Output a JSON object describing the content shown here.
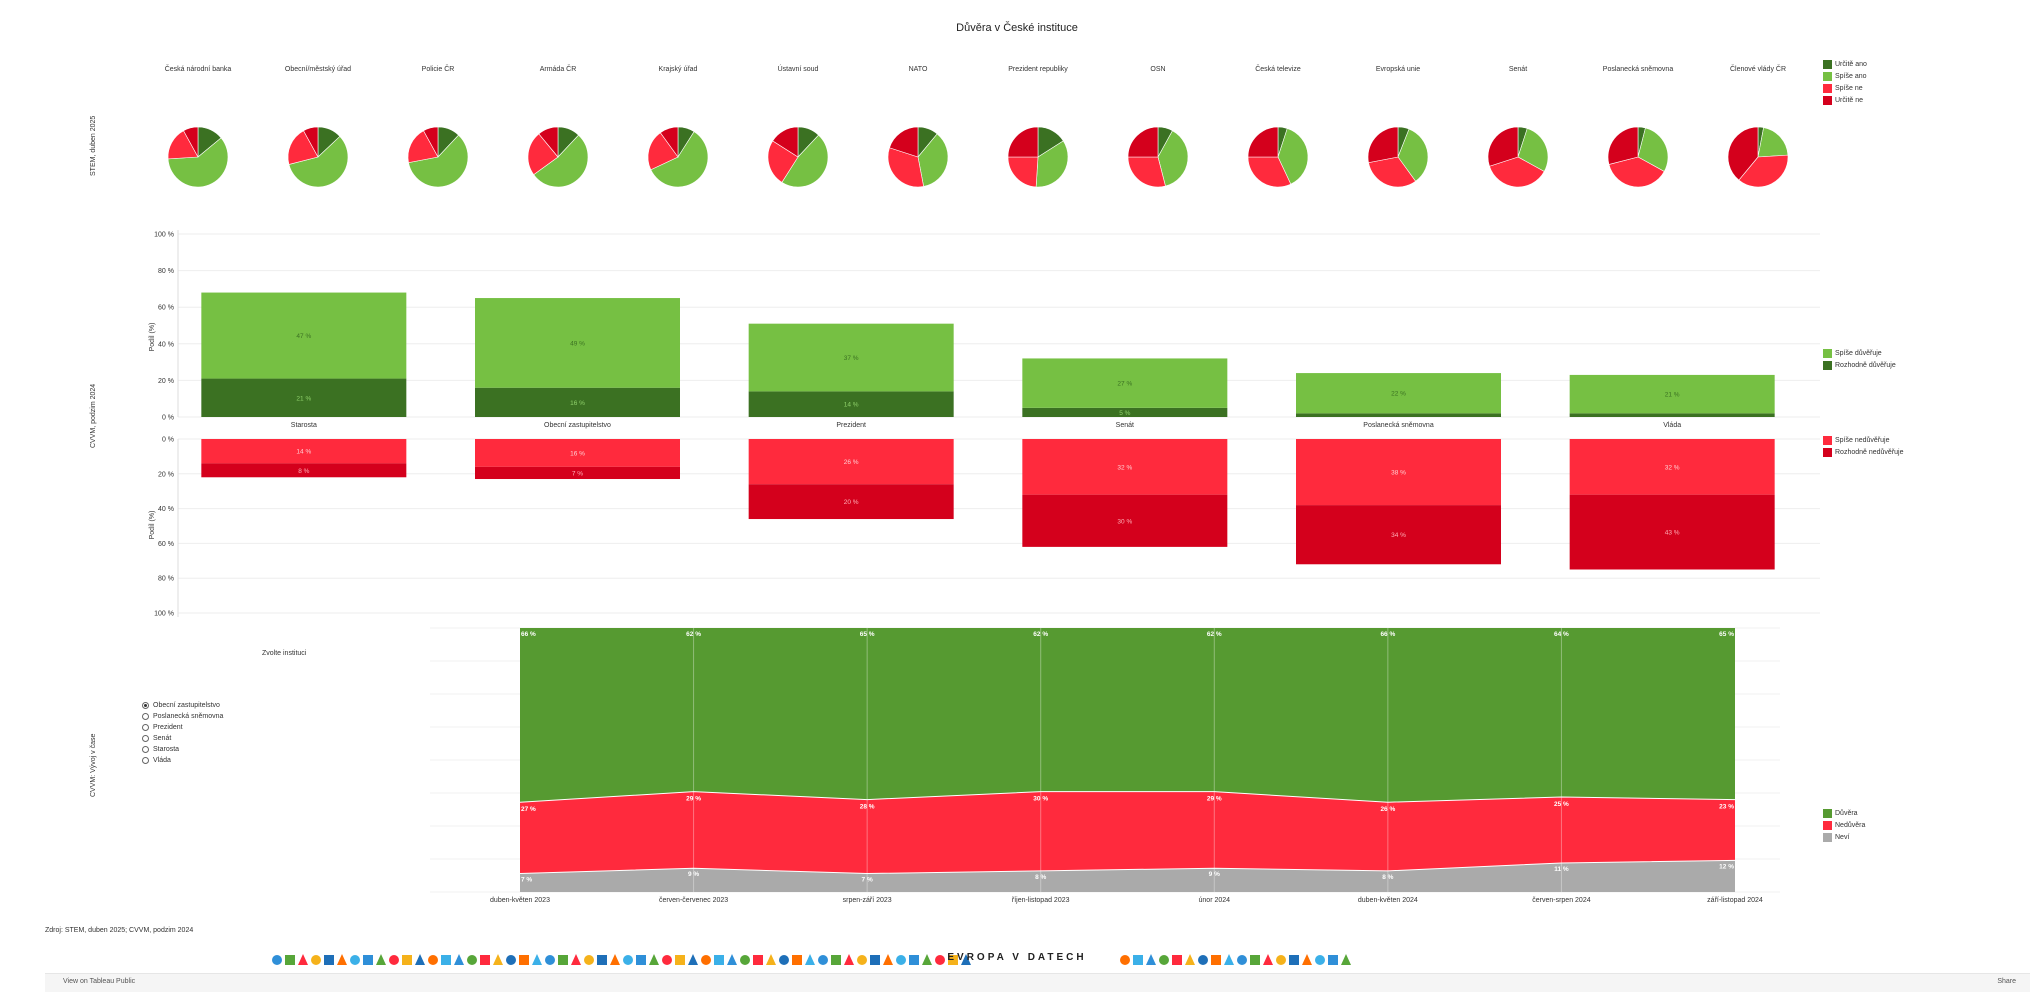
{
  "title": "Důvěra v České instituce",
  "colors": {
    "dark_green": "#3b7122",
    "light_green": "#76c043",
    "light_red": "#ff2a3d",
    "dark_red": "#d4001c",
    "trend_green": "#569a31",
    "trend_red": "#ff2a3d",
    "trend_gray": "#aaaaaa"
  },
  "row_labels": {
    "pies": "STEM, duben 2025",
    "bars": "CVVM, podzim 2024",
    "trend": "CVVM: Vývoj v čase"
  },
  "pie_legend": [
    "Určitě ano",
    "Spíše ano",
    "Spíše ne",
    "Určitě ne"
  ],
  "bar_legend_top": [
    "Spíše důvěřuje",
    "Rozhodně důvěřuje"
  ],
  "bar_legend_bottom": [
    "Spíše nedůvěřuje",
    "Rozhodně nedůvěřuje"
  ],
  "trend_legend": [
    "Důvěra",
    "Nedůvěra",
    "Neví"
  ],
  "selector": {
    "heading": "Zvolte instituci",
    "options": [
      "Obecní zastupitelstvo",
      "Poslanecká sněmovna",
      "Prezident",
      "Senát",
      "Starosta",
      "Vláda"
    ],
    "selected": "Obecní zastupitelstvo"
  },
  "source": "Zdroj: STEM, duben 2025; CVVM, podzim 2024",
  "brand": "EVROPA V DATECH",
  "footer": {
    "link": "View on Tableau Public",
    "share": "Share"
  },
  "chart_data": [
    {
      "type": "pie",
      "title": "",
      "categories": [
        "Česká národní banka",
        "Obecní/městský úřad",
        "Policie ČR",
        "Armáda ČR",
        "Krajský úřad",
        "Ústavní soud",
        "NATO",
        "Prezident republiky",
        "OSN",
        "Česká televize",
        "Evropská unie",
        "Senát",
        "Poslanecká sněmovna",
        "Členové vlády ČR"
      ],
      "series": [
        {
          "name": "Určitě ano",
          "values": [
            14,
            13,
            12,
            12,
            9,
            12,
            11,
            16,
            8,
            5,
            6,
            5,
            4,
            3
          ]
        },
        {
          "name": "Spíše ano",
          "values": [
            60,
            58,
            60,
            53,
            59,
            47,
            36,
            35,
            38,
            38,
            34,
            28,
            29,
            21
          ]
        },
        {
          "name": "Spíše ne",
          "values": [
            18,
            21,
            20,
            24,
            22,
            25,
            33,
            24,
            29,
            32,
            32,
            37,
            38,
            37
          ]
        },
        {
          "name": "Určitě ne",
          "values": [
            8,
            8,
            8,
            11,
            10,
            16,
            20,
            25,
            25,
            25,
            28,
            30,
            29,
            39
          ]
        }
      ]
    },
    {
      "type": "bar",
      "title": "",
      "ylabel": "Podíl (%)",
      "ylim": [
        0,
        100
      ],
      "yticks": [
        "0 %",
        "20 %",
        "40 %",
        "60 %",
        "80 %",
        "100 %"
      ],
      "categories": [
        "Starosta",
        "Obecní zastupitelstvo",
        "Prezident",
        "Senát",
        "Poslanecká sněmovna",
        "Vláda"
      ],
      "series": [
        {
          "name": "Rozhodně důvěřuje",
          "values": [
            21,
            16,
            14,
            5,
            2,
            2
          ],
          "labels": [
            "21 %",
            "16 %",
            "14 %",
            "5 %",
            "",
            ""
          ]
        },
        {
          "name": "Spíše důvěřuje",
          "values": [
            47,
            49,
            37,
            27,
            22,
            21
          ],
          "labels": [
            "47 %",
            "49 %",
            "37 %",
            "27 %",
            "22 %",
            "21 %"
          ]
        },
        {
          "name": "Spíše nedůvěřuje",
          "values": [
            14,
            16,
            26,
            32,
            38,
            32
          ],
          "labels": [
            "14 %",
            "16 %",
            "26 %",
            "32 %",
            "38 %",
            "32 %"
          ]
        },
        {
          "name": "Rozhodně nedůvěřuje",
          "values": [
            8,
            7,
            20,
            30,
            34,
            43
          ],
          "labels": [
            "8 %",
            "7 %",
            "20 %",
            "30 %",
            "34 %",
            "43 %"
          ]
        }
      ]
    },
    {
      "type": "area",
      "title": "",
      "ylim": [
        0,
        100
      ],
      "x": [
        "duben-květen 2023",
        "červen-červenec 2023",
        "srpen-září 2023",
        "říjen-listopad 2023",
        "únor 2024",
        "duben-květen 2024",
        "červen-srpen 2024",
        "září-listopad 2024"
      ],
      "series": [
        {
          "name": "Neví",
          "values": [
            7,
            9,
            7,
            8,
            9,
            8,
            11,
            12
          ],
          "labels": [
            "7 %",
            "9 %",
            "7 %",
            "8 %",
            "9 %",
            "8 %",
            "11 %",
            "12 %"
          ]
        },
        {
          "name": "Nedůvěra",
          "values": [
            27,
            29,
            28,
            30,
            29,
            26,
            25,
            23
          ],
          "labels": [
            "27 %",
            "29 %",
            "28 %",
            "30 %",
            "29 %",
            "26 %",
            "25 %",
            "23 %"
          ]
        },
        {
          "name": "Důvěra",
          "values": [
            66,
            62,
            65,
            62,
            62,
            66,
            64,
            65
          ],
          "labels": [
            "66 %",
            "62 %",
            "65 %",
            "62 %",
            "62 %",
            "66 %",
            "64 %",
            "65 %"
          ]
        }
      ]
    }
  ]
}
